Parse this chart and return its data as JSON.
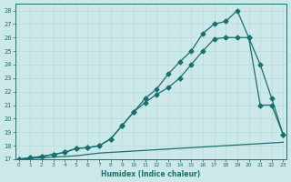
{
  "bg_color": "#cce8e8",
  "line_color": "#1a7070",
  "xlim": [
    0,
    23
  ],
  "ylim": [
    17,
    28.5
  ],
  "xticks": [
    0,
    1,
    2,
    3,
    4,
    5,
    6,
    7,
    8,
    9,
    10,
    11,
    12,
    13,
    14,
    15,
    16,
    17,
    18,
    19,
    20,
    21,
    22,
    23
  ],
  "yticks": [
    17,
    18,
    19,
    20,
    21,
    22,
    23,
    24,
    25,
    26,
    27,
    28
  ],
  "xlabel": "Humidex (Indice chaleur)",
  "line_flat_x": [
    0,
    1,
    2,
    3,
    4,
    5,
    6,
    7,
    8,
    9,
    10,
    11,
    12,
    13,
    14,
    15,
    16,
    17,
    18,
    19,
    20,
    21,
    22,
    23
  ],
  "line_flat_y": [
    17,
    17.05,
    17.1,
    17.15,
    17.2,
    17.25,
    17.35,
    17.45,
    17.5,
    17.55,
    17.6,
    17.65,
    17.7,
    17.75,
    17.8,
    17.85,
    17.9,
    17.95,
    18.0,
    18.05,
    18.1,
    18.15,
    18.2,
    18.25
  ],
  "line_mid_x": [
    0,
    1,
    2,
    3,
    4,
    5,
    6,
    7,
    8,
    9,
    10,
    11,
    12,
    13,
    14,
    15,
    16,
    17,
    18,
    19,
    20,
    21,
    22,
    23
  ],
  "line_mid_y": [
    17,
    17.1,
    17.2,
    17.35,
    17.5,
    17.8,
    17.85,
    18.0,
    18.5,
    19.5,
    20.5,
    21.2,
    21.8,
    22.3,
    23.0,
    24.0,
    25.0,
    25.9,
    26.0,
    26.0,
    26.0,
    24.0,
    21.5,
    18.8
  ],
  "line_top_x": [
    0,
    1,
    2,
    3,
    4,
    5,
    6,
    7,
    8,
    9,
    10,
    11,
    12,
    13,
    14,
    15,
    16,
    17,
    18,
    19,
    20,
    21,
    22,
    23
  ],
  "line_top_y": [
    17,
    17.1,
    17.2,
    17.35,
    17.5,
    17.8,
    17.85,
    18.0,
    18.5,
    19.5,
    20.5,
    21.5,
    22.2,
    23.3,
    24.2,
    25.0,
    26.3,
    27.0,
    27.2,
    28.0,
    26.0,
    21.0,
    21.0,
    18.8
  ]
}
